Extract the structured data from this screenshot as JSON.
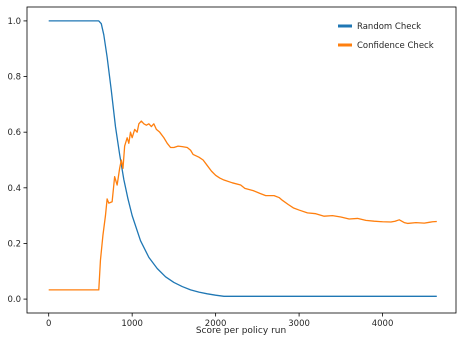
{
  "chart_data": {
    "type": "line",
    "title": "",
    "xlabel": "Score per policy run",
    "ylabel": "",
    "xlim": [
      -260,
      4880
    ],
    "ylim": [
      -0.05,
      1.05
    ],
    "x_ticks": [
      0,
      1000,
      2000,
      3000,
      4000
    ],
    "x_tick_labels": [
      "0",
      "1000",
      "2000",
      "3000",
      "4000"
    ],
    "y_ticks": [
      0.0,
      0.2,
      0.4,
      0.6,
      0.8,
      1.0
    ],
    "y_tick_labels": [
      "0.0",
      "0.2",
      "0.4",
      "0.6",
      "0.8",
      "1.0"
    ],
    "grid": false,
    "legend_position": "top-right",
    "series": [
      {
        "name": "Random Check",
        "color": "#1f77b4",
        "points": [
          [
            0,
            1.0
          ],
          [
            600,
            1.0
          ],
          [
            630,
            0.99
          ],
          [
            660,
            0.95
          ],
          [
            700,
            0.87
          ],
          [
            750,
            0.75
          ],
          [
            800,
            0.62
          ],
          [
            850,
            0.52
          ],
          [
            900,
            0.43
          ],
          [
            950,
            0.36
          ],
          [
            1000,
            0.3
          ],
          [
            1100,
            0.21
          ],
          [
            1200,
            0.15
          ],
          [
            1300,
            0.11
          ],
          [
            1400,
            0.08
          ],
          [
            1500,
            0.06
          ],
          [
            1600,
            0.045
          ],
          [
            1700,
            0.033
          ],
          [
            1800,
            0.025
          ],
          [
            1900,
            0.019
          ],
          [
            2000,
            0.014
          ],
          [
            2100,
            0.01
          ],
          [
            2500,
            0.01
          ],
          [
            3000,
            0.01
          ],
          [
            3500,
            0.01
          ],
          [
            4000,
            0.01
          ],
          [
            4650,
            0.01
          ]
        ]
      },
      {
        "name": "Confidence Check",
        "color": "#ff7f0e",
        "points": [
          [
            0,
            0.033
          ],
          [
            590,
            0.033
          ],
          [
            600,
            0.033
          ],
          [
            620,
            0.14
          ],
          [
            650,
            0.23
          ],
          [
            680,
            0.3
          ],
          [
            700,
            0.36
          ],
          [
            720,
            0.345
          ],
          [
            760,
            0.35
          ],
          [
            790,
            0.44
          ],
          [
            820,
            0.41
          ],
          [
            850,
            0.47
          ],
          [
            870,
            0.5
          ],
          [
            890,
            0.47
          ],
          [
            910,
            0.55
          ],
          [
            940,
            0.58
          ],
          [
            960,
            0.56
          ],
          [
            980,
            0.6
          ],
          [
            1000,
            0.58
          ],
          [
            1030,
            0.61
          ],
          [
            1060,
            0.6
          ],
          [
            1080,
            0.63
          ],
          [
            1110,
            0.64
          ],
          [
            1140,
            0.63
          ],
          [
            1170,
            0.625
          ],
          [
            1200,
            0.63
          ],
          [
            1230,
            0.62
          ],
          [
            1260,
            0.63
          ],
          [
            1290,
            0.61
          ],
          [
            1330,
            0.6
          ],
          [
            1380,
            0.58
          ],
          [
            1420,
            0.56
          ],
          [
            1460,
            0.545
          ],
          [
            1500,
            0.545
          ],
          [
            1550,
            0.55
          ],
          [
            1600,
            0.548
          ],
          [
            1660,
            0.545
          ],
          [
            1700,
            0.535
          ],
          [
            1730,
            0.52
          ],
          [
            1800,
            0.51
          ],
          [
            1850,
            0.5
          ],
          [
            1900,
            0.48
          ],
          [
            1950,
            0.46
          ],
          [
            2000,
            0.445
          ],
          [
            2050,
            0.435
          ],
          [
            2100,
            0.428
          ],
          [
            2200,
            0.418
          ],
          [
            2300,
            0.41
          ],
          [
            2350,
            0.398
          ],
          [
            2450,
            0.39
          ],
          [
            2530,
            0.38
          ],
          [
            2600,
            0.372
          ],
          [
            2700,
            0.372
          ],
          [
            2760,
            0.365
          ],
          [
            2800,
            0.355
          ],
          [
            2870,
            0.34
          ],
          [
            2930,
            0.328
          ],
          [
            3000,
            0.32
          ],
          [
            3100,
            0.31
          ],
          [
            3200,
            0.307
          ],
          [
            3300,
            0.298
          ],
          [
            3400,
            0.3
          ],
          [
            3500,
            0.295
          ],
          [
            3600,
            0.288
          ],
          [
            3700,
            0.29
          ],
          [
            3800,
            0.283
          ],
          [
            3900,
            0.28
          ],
          [
            4000,
            0.278
          ],
          [
            4100,
            0.277
          ],
          [
            4150,
            0.28
          ],
          [
            4200,
            0.285
          ],
          [
            4260,
            0.275
          ],
          [
            4300,
            0.272
          ],
          [
            4400,
            0.275
          ],
          [
            4500,
            0.273
          ],
          [
            4560,
            0.276
          ],
          [
            4600,
            0.278
          ],
          [
            4650,
            0.279
          ]
        ]
      }
    ]
  }
}
